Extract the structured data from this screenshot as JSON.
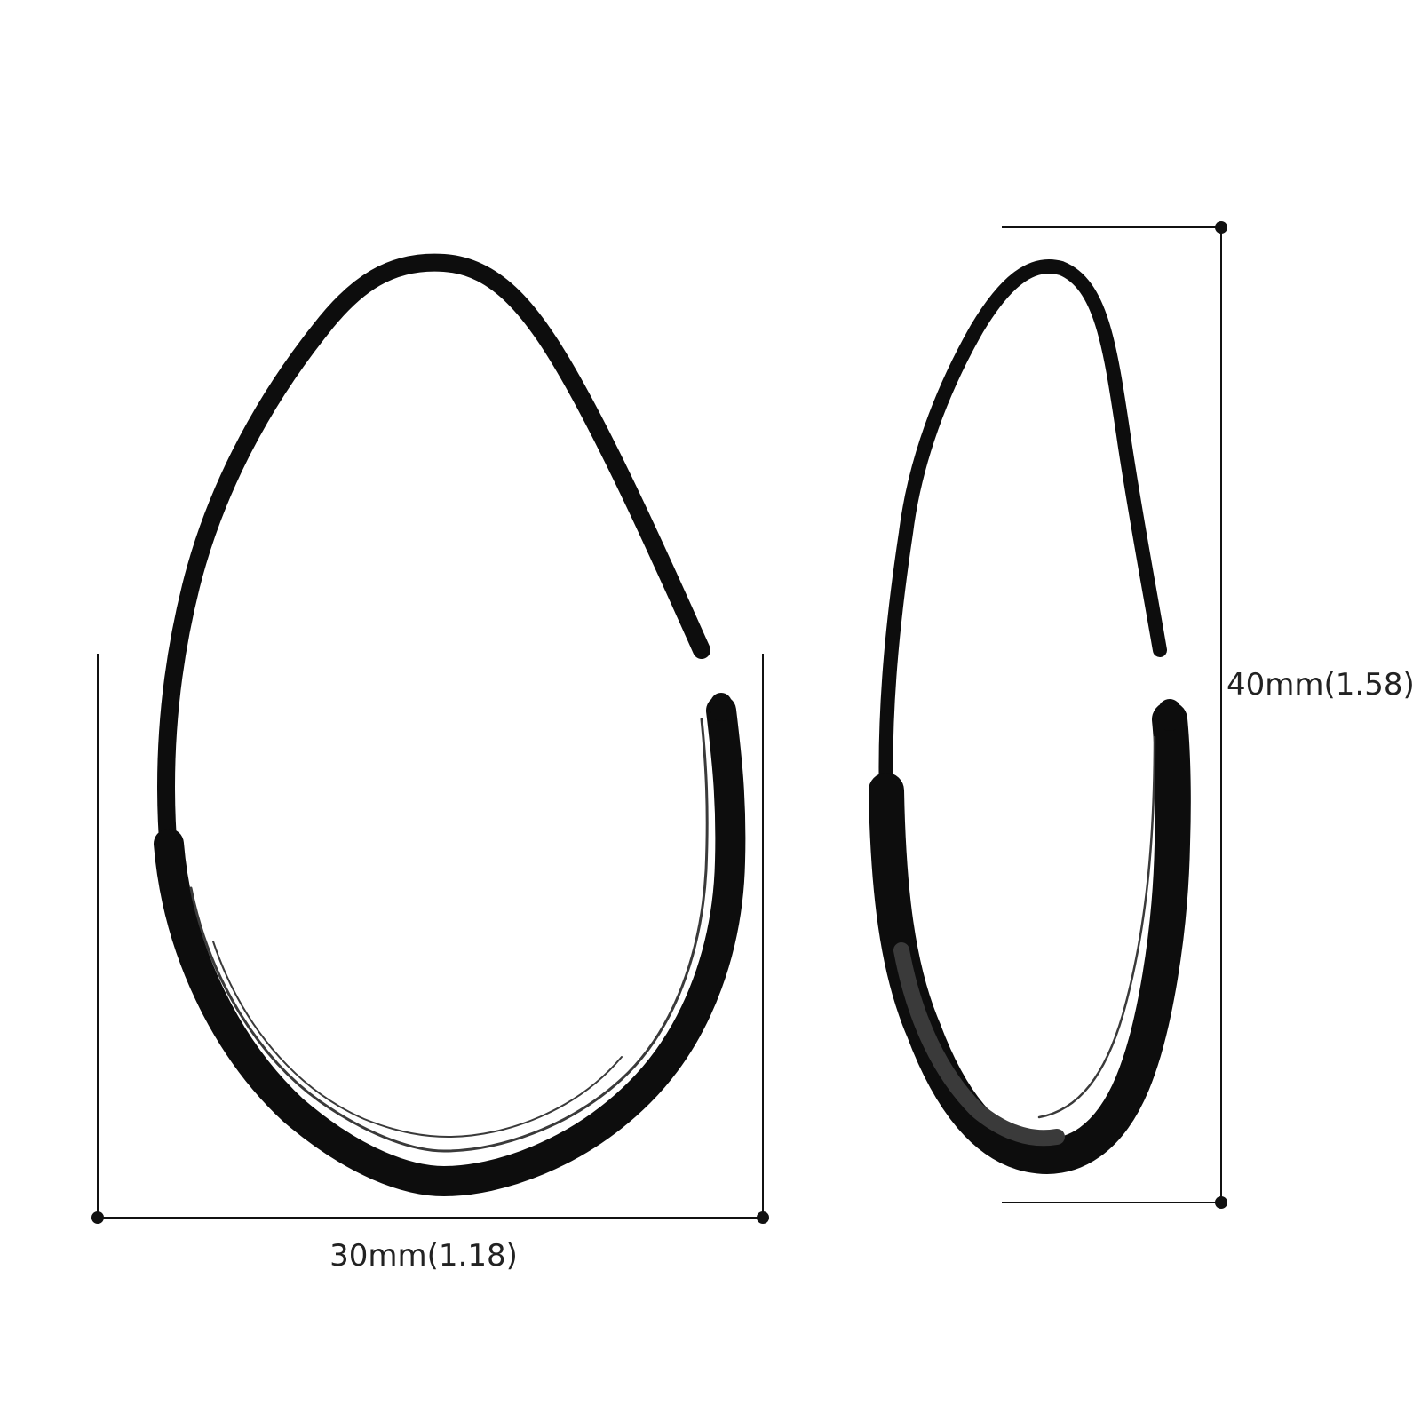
{
  "colors": {
    "metal": "#0d0d0d",
    "metal_highlight": "#3a3a3a",
    "dimension_line": "#111111",
    "background": "#ffffff"
  },
  "dimensions": {
    "width_label": "30mm(1.18)",
    "height_label": "40mm(1.58)"
  },
  "views": {
    "front": "earring-front-view",
    "side": "earring-side-view"
  }
}
